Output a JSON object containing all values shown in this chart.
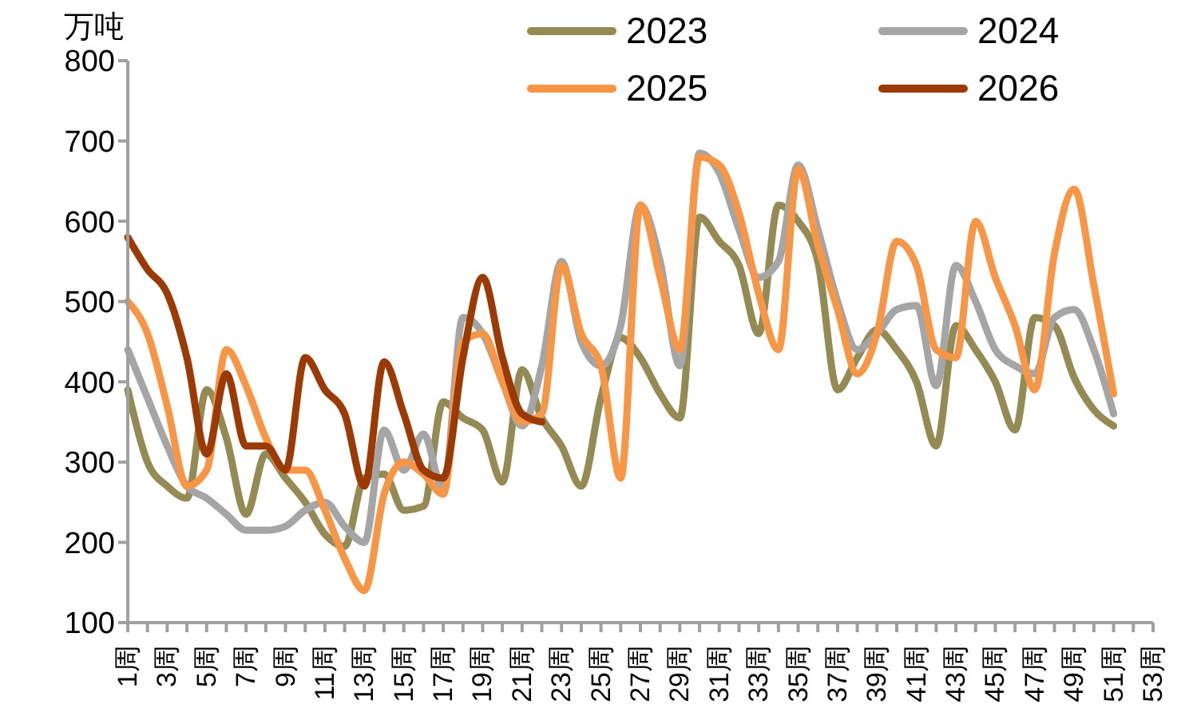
{
  "chart_data": {
    "type": "line",
    "ylabel": "万吨",
    "categories": [
      "1周",
      null,
      "3周",
      null,
      "5周",
      null,
      "7周",
      null,
      "9周",
      null,
      "11周",
      null,
      "13周",
      null,
      "15周",
      null,
      "17周",
      null,
      "19周",
      null,
      "21周",
      null,
      "23周",
      null,
      "25周",
      null,
      "27周",
      null,
      "29周",
      null,
      "31周",
      null,
      "33周",
      null,
      "35周",
      null,
      "37周",
      null,
      "39周",
      null,
      "41周",
      null,
      "43周",
      null,
      "45周",
      null,
      "47周",
      null,
      "49周",
      null,
      "51周",
      null,
      "53周"
    ],
    "series": [
      {
        "name": "2023",
        "color": "#948a54",
        "values": [
          390,
          300,
          270,
          255,
          390,
          330,
          235,
          310,
          280,
          250,
          210,
          195,
          280,
          285,
          240,
          245,
          375,
          355,
          340,
          275,
          415,
          355,
          320,
          270,
          380,
          455,
          430,
          385,
          355,
          605,
          575,
          545,
          460,
          620,
          600,
          550,
          390,
          430,
          465,
          440,
          400,
          320,
          470,
          440,
          400,
          340,
          480,
          470,
          405,
          365,
          345,
          null,
          null
        ]
      },
      {
        "name": "2024",
        "color": "#a5a5a5",
        "values": [
          440,
          380,
          320,
          270,
          255,
          235,
          215,
          215,
          220,
          240,
          250,
          220,
          200,
          340,
          290,
          335,
          265,
          480,
          460,
          400,
          345,
          420,
          550,
          450,
          420,
          470,
          620,
          550,
          420,
          685,
          660,
          590,
          530,
          550,
          670,
          590,
          500,
          440,
          460,
          490,
          495,
          395,
          545,
          500,
          440,
          420,
          410,
          480,
          490,
          440,
          360,
          null,
          null
        ]
      },
      {
        "name": "2025",
        "color": "#f79646",
        "values": [
          500,
          460,
          370,
          270,
          290,
          440,
          395,
          330,
          290,
          290,
          240,
          180,
          140,
          260,
          300,
          285,
          260,
          450,
          460,
          400,
          350,
          360,
          545,
          460,
          420,
          280,
          620,
          530,
          440,
          680,
          670,
          610,
          510,
          440,
          665,
          570,
          490,
          410,
          460,
          575,
          545,
          440,
          430,
          600,
          530,
          470,
          390,
          560,
          640,
          520,
          385,
          null,
          null
        ]
      },
      {
        "name": "2026",
        "color": "#9c3a06",
        "values": [
          580,
          540,
          510,
          430,
          310,
          410,
          320,
          320,
          290,
          430,
          390,
          360,
          270,
          425,
          360,
          290,
          280,
          430,
          530,
          430,
          360,
          350,
          null,
          null,
          null,
          null,
          null,
          null,
          null,
          null,
          null,
          null,
          null,
          null,
          null,
          null,
          null,
          null,
          null,
          null,
          null,
          null,
          null,
          null,
          null,
          null,
          null,
          null,
          null,
          null,
          null,
          null,
          null
        ]
      }
    ],
    "ylim": [
      100,
      800
    ],
    "yticks": [
      100,
      200,
      300,
      400,
      500,
      600,
      700,
      800
    ],
    "grid": false,
    "legend": "top",
    "marker": "none",
    "line_style": "solid"
  }
}
